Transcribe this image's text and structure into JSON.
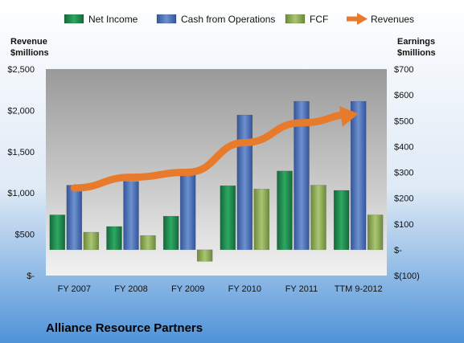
{
  "chart_data": {
    "type": "bar",
    "title": "Alliance Resource Partners",
    "categories": [
      "FY 2007",
      "FY 2008",
      "FY 2009",
      "FY 2010",
      "FY 2011",
      "TTM 9-2012"
    ],
    "y_left": {
      "label_lines": [
        "Revenue",
        "$millions"
      ],
      "min": 0,
      "max": 2500,
      "ticks": [
        0,
        500,
        1000,
        1500,
        2000,
        2500
      ],
      "tick_labels": [
        "$-",
        "$500",
        "$1,000",
        "$1,500",
        "$2,000",
        "$2,500"
      ]
    },
    "y_right": {
      "label_lines": [
        "Earnings",
        "$millions"
      ],
      "min": -100,
      "max": 700,
      "ticks": [
        -100,
        0,
        100,
        200,
        300,
        400,
        500,
        600,
        700
      ],
      "tick_labels": [
        "$(100)",
        "$-",
        "$100",
        "$200",
        "$300",
        "$400",
        "$500",
        "$600",
        "$700"
      ]
    },
    "series": [
      {
        "name": "Net Income",
        "kind": "bar",
        "axis": "right",
        "color": "#1f8a4c",
        "values": [
          135,
          90,
          130,
          248,
          305,
          230
        ]
      },
      {
        "name": "Cash from Operations",
        "kind": "bar",
        "axis": "right",
        "color": "#4a6fb5",
        "values": [
          250,
          265,
          290,
          522,
          575,
          575
        ]
      },
      {
        "name": "FCF",
        "kind": "bar",
        "axis": "right",
        "color": "#8fac58",
        "values": [
          68,
          55,
          -45,
          235,
          250,
          135
        ]
      },
      {
        "name": "Revenues",
        "kind": "line",
        "axis": "left",
        "color": "#e87a2c",
        "values": [
          1060,
          1190,
          1250,
          1610,
          1850,
          1960
        ]
      }
    ],
    "legend_position": "top",
    "grid": false
  }
}
